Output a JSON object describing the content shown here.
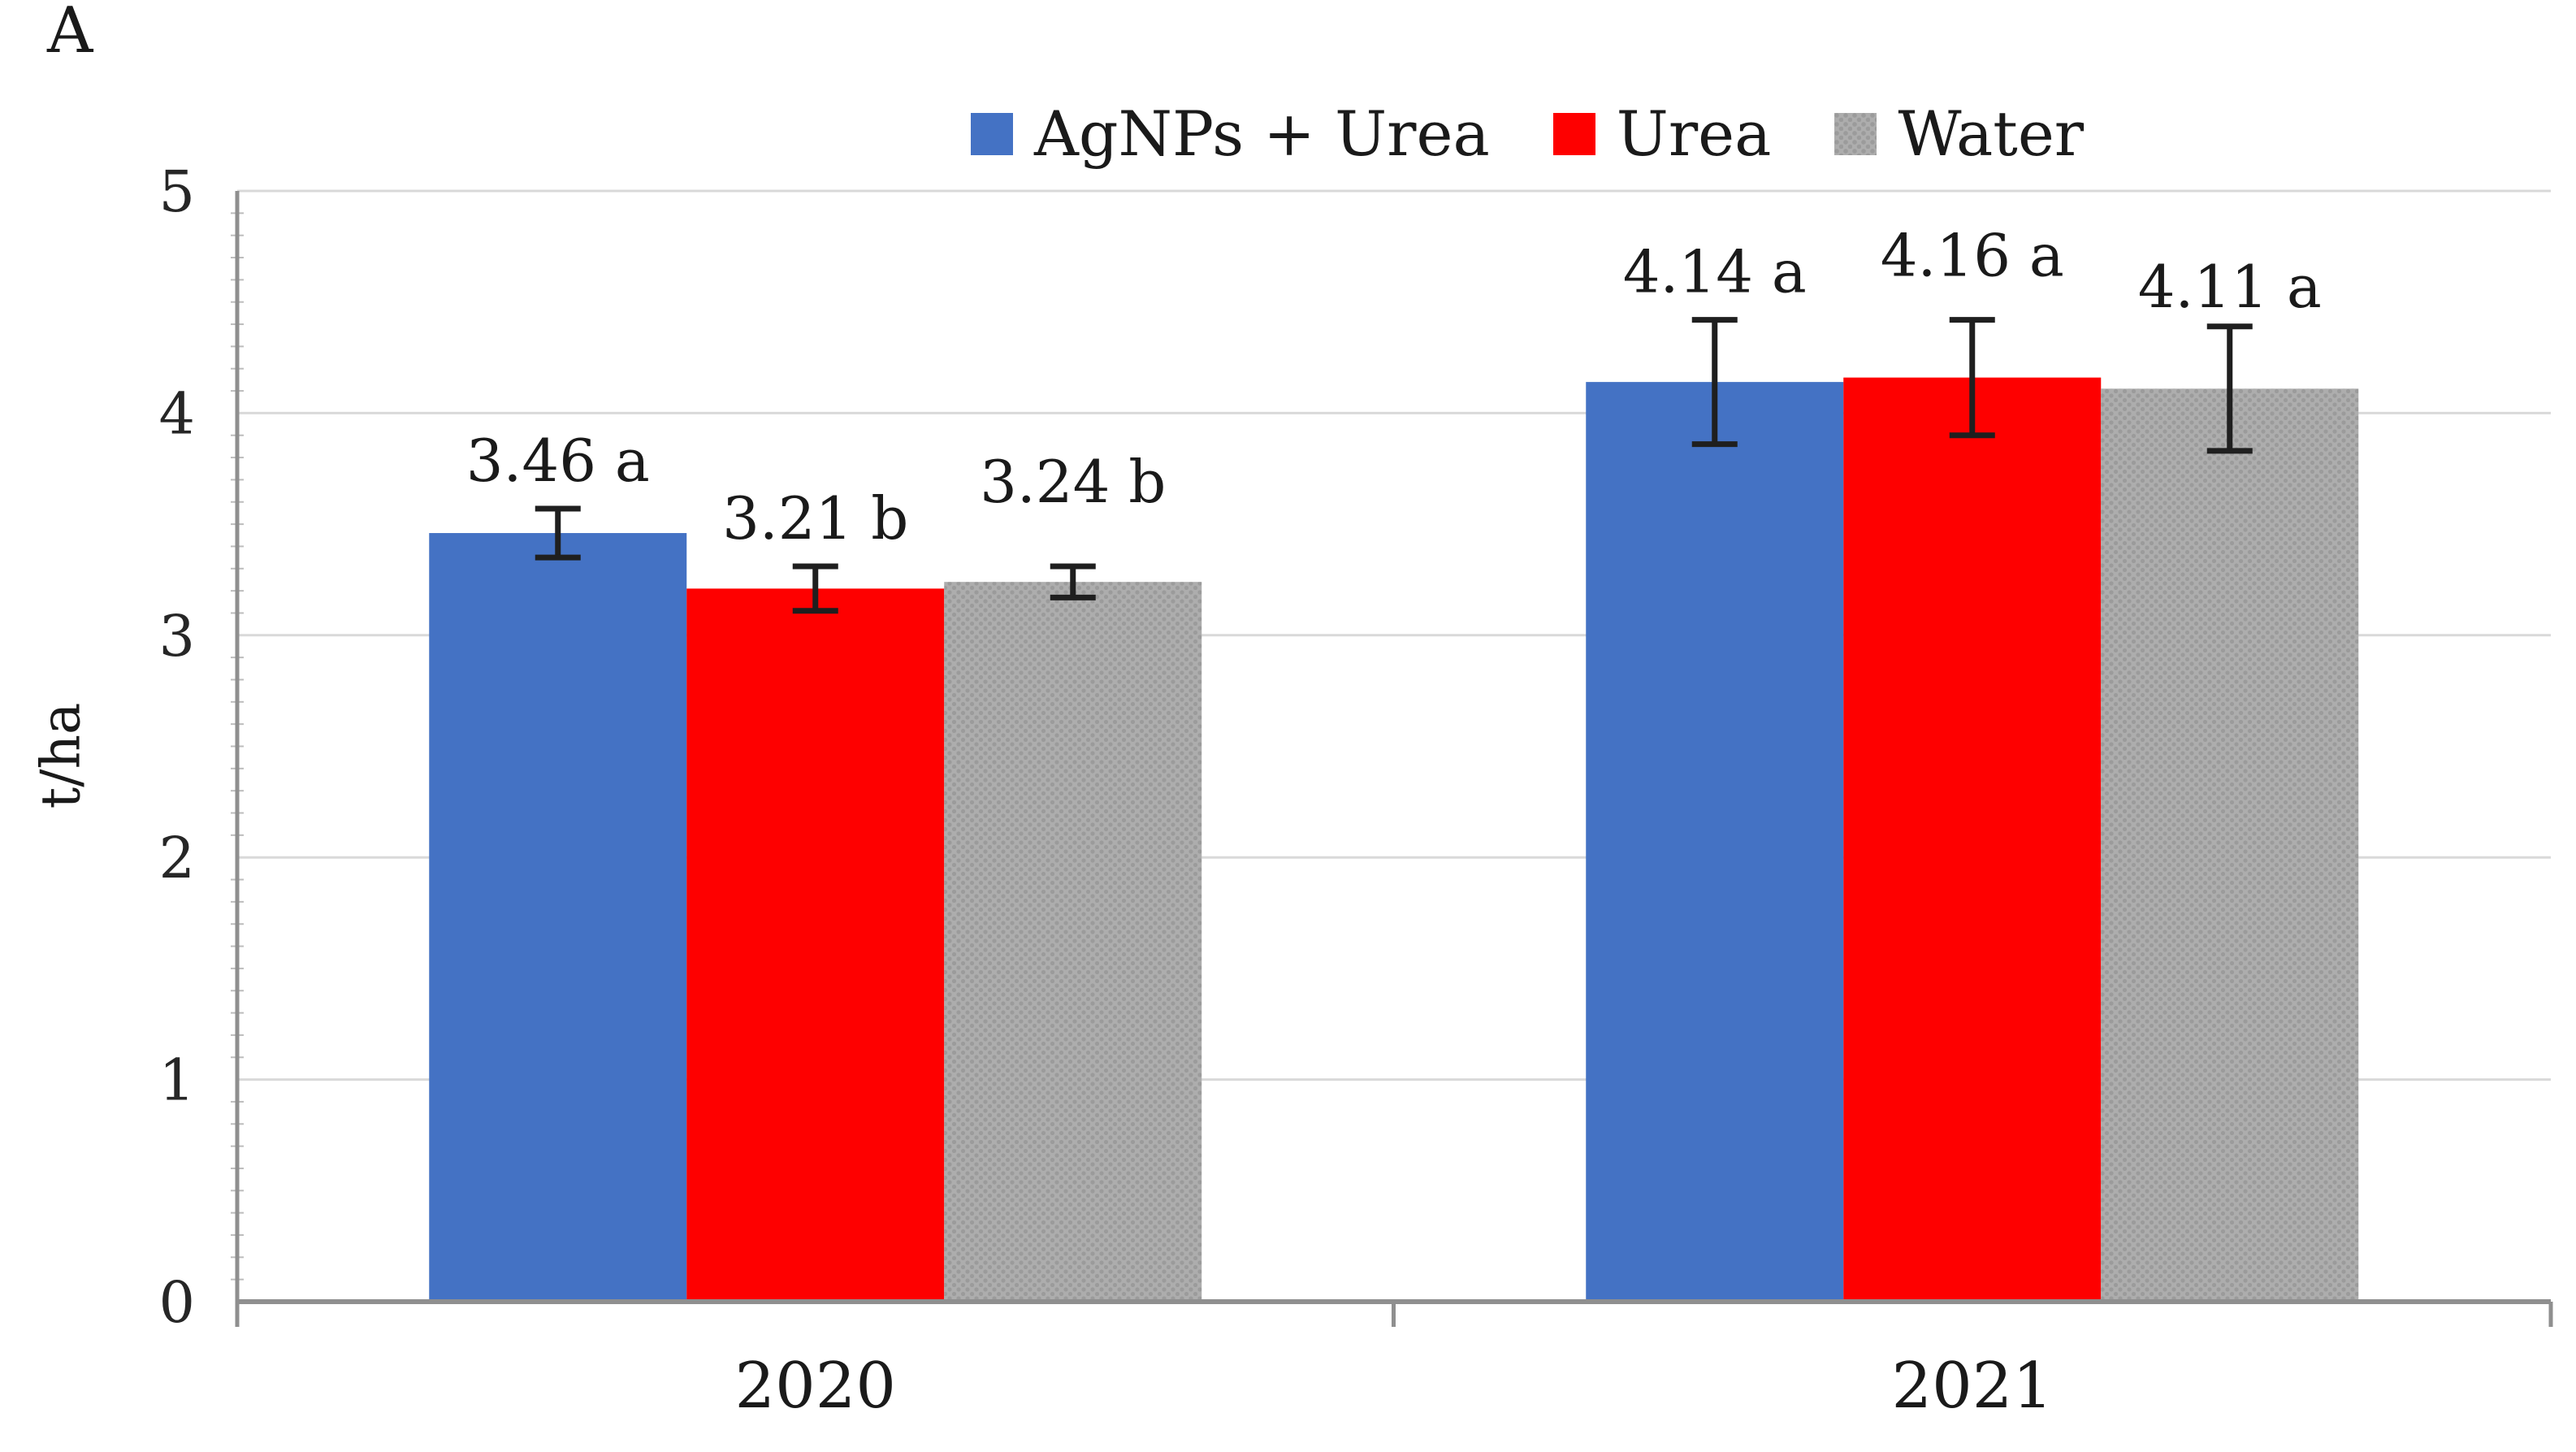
{
  "panel_label": "A",
  "colors": {
    "background": "#FFFFFF",
    "grid": "#D9D9D9",
    "axis": "#8F8F8F",
    "minor_tick": "#BDBDBD",
    "text": "#1A1A1A",
    "error_bar": "#1F1F1F"
  },
  "chart_data": {
    "type": "bar",
    "title": "",
    "categories": [
      "2020",
      "2021"
    ],
    "series": [
      {
        "name": "AgNPs + Urea",
        "color": "#4472C4",
        "values": [
          3.46,
          4.14
        ],
        "errors": [
          0.11,
          0.28
        ],
        "point_labels": [
          "3.46 a",
          "4.14 a"
        ],
        "label_dy": [
          0,
          0
        ]
      },
      {
        "name": "Urea",
        "color": "#FE0000",
        "values": [
          3.21,
          4.16
        ],
        "errors": [
          0.1,
          0.26
        ],
        "point_labels": [
          "3.21 b",
          "4.16 a"
        ],
        "label_dy": [
          0,
          -20
        ]
      },
      {
        "name": "Water",
        "color": "#ADADAD",
        "pattern": "dots",
        "pattern_dot_color": "#9B9B9B",
        "values": [
          3.24,
          4.11
        ],
        "errors": [
          0.07,
          0.28
        ],
        "point_labels": [
          "3.24 b",
          "4.11 a"
        ],
        "label_dy": [
          -45,
          10
        ]
      }
    ],
    "xlabel": "",
    "ylabel": "t/ha",
    "ylim": [
      0,
      5
    ],
    "yticks": [
      0,
      1,
      2,
      3,
      4,
      5
    ],
    "grid": true,
    "legend_position": "top"
  }
}
